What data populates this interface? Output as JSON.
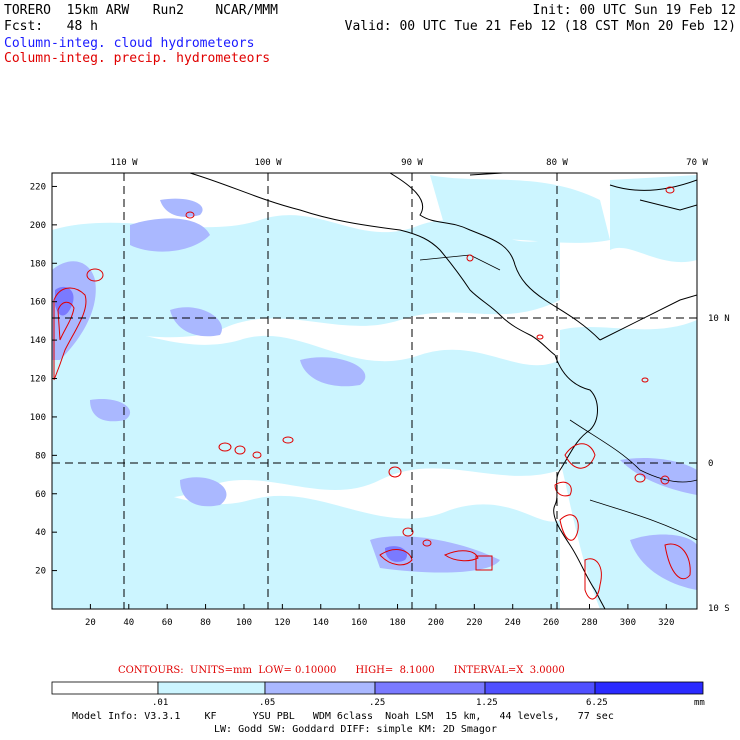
{
  "header": {
    "line1_left": "TORERO  15km ARW   Run2    NCAR/MMM",
    "line1_right": "Init: 00 UTC Sun 19 Feb 12",
    "line2_left": "Fcst:   48 h",
    "line2_right": "Valid: 00 UTC Tue 21 Feb 12 (18 CST Mon 20 Feb 12)",
    "field1": "Column-integ. cloud hydrometeors",
    "field2": "Column-integ. precip. hydrometeors"
  },
  "map": {
    "top_lon_labels": [
      "110 W",
      "100 W",
      "90 W",
      "80 W",
      "70 W"
    ],
    "right_lat_labels": [
      "10 N",
      "0",
      "10 S"
    ],
    "x_ticks": [
      "20",
      "40",
      "60",
      "80",
      "100",
      "120",
      "140",
      "160",
      "180",
      "200",
      "220",
      "240",
      "260",
      "280",
      "300",
      "320"
    ],
    "y_ticks": [
      "220",
      "200",
      "180",
      "160",
      "140",
      "120",
      "100",
      "80",
      "60",
      "40",
      "20"
    ]
  },
  "contours_text": "CONTOURS:  UNITS=mm  LOW= 0.10000      HIGH=  8.1000      INTERVAL=X  3.0000",
  "colorbar": {
    "labels": [
      ".01",
      ".05",
      ".25",
      "1.25",
      "6.25"
    ],
    "unit": "mm",
    "colors": [
      "#ffffff",
      "#ccf5ff",
      "#aab8ff",
      "#7a7aff",
      "#5050ff",
      "#2a2aff"
    ]
  },
  "footer": {
    "line1": "Model Info: V3.3.1    KF      YSU PBL   WDM 6class  Noah LSM  15 km,   44 levels,   77 sec",
    "line2": "LW: Godd SW: Goddard DIFF: simple KM: 2D Smagor"
  }
}
